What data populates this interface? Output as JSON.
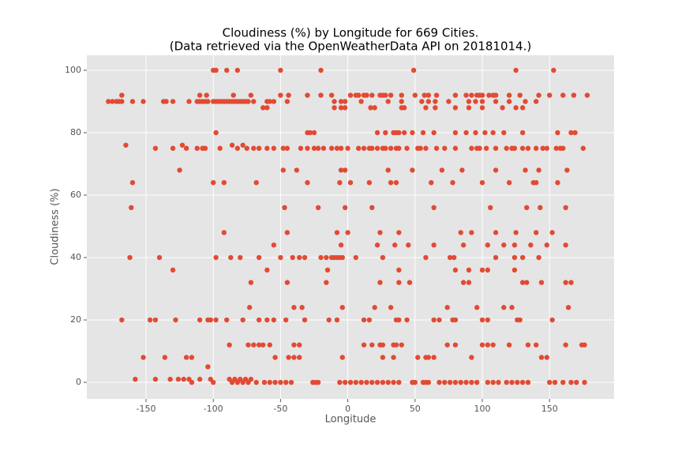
{
  "chart_data": {
    "type": "scatter",
    "title": "Cloudiness (%) by Longitude for 669 Cities.",
    "subtitle": "(Data retrieved via the OpenWeatherData API on 20181014.)",
    "x_label": "Longitude",
    "y_label": "Cloudiness (%)",
    "xlim": [
      -194,
      198
    ],
    "ylim": [
      -5.3,
      104.8
    ],
    "xticks": [
      -150,
      -100,
      -50,
      0,
      50,
      100,
      150
    ],
    "yticks": [
      0,
      20,
      40,
      60,
      80,
      100
    ],
    "grid": true,
    "color": "#e24a33",
    "x": [
      -178,
      -175,
      -172,
      -170,
      -168,
      -160,
      -152,
      -137,
      -135,
      -130,
      -118,
      -112,
      -110,
      -108,
      -106,
      -104,
      -100,
      -98,
      -96,
      -94,
      -92,
      -90,
      -88,
      -86,
      -84,
      -82,
      -80,
      -78,
      -76,
      -74,
      -70,
      -60,
      -58,
      -55,
      -45,
      -10,
      -5,
      -2,
      10,
      30,
      40,
      55,
      60,
      65,
      75,
      90,
      95,
      100,
      110,
      120,
      132,
      140,
      -168,
      -110,
      -105,
      -85,
      -72,
      -50,
      -44,
      -30,
      -20,
      -12,
      2,
      6,
      8,
      12,
      14,
      18,
      24,
      26,
      28,
      32,
      40,
      50,
      57,
      60,
      66,
      80,
      88,
      92,
      96,
      98,
      100,
      105,
      108,
      110,
      120,
      128,
      142,
      150,
      160,
      168,
      178,
      -100,
      -98,
      -90,
      -82,
      -50,
      -20,
      49,
      125,
      153,
      -63,
      -60,
      -10,
      -5,
      -2,
      17,
      20,
      40,
      42,
      58,
      65,
      80,
      90,
      100,
      115,
      125,
      130,
      -98,
      -30,
      -28,
      -25,
      22,
      28,
      34,
      36,
      38,
      42,
      48,
      56,
      64,
      80,
      88,
      95,
      102,
      108,
      116,
      130,
      156,
      166,
      169,
      -165,
      -143,
      -130,
      -123,
      -120,
      -112,
      -108,
      -106,
      -95,
      -86,
      -82,
      -78,
      -75,
      -70,
      -66,
      -60,
      -55,
      -48,
      -45,
      -35,
      -30,
      -25,
      -22,
      -18,
      -12,
      -8,
      -5,
      0,
      8,
      12,
      16,
      18,
      22,
      26,
      28,
      32,
      36,
      38,
      44,
      52,
      54,
      58,
      66,
      72,
      80,
      92,
      96,
      98,
      103,
      110,
      118,
      122,
      124,
      130,
      134,
      140,
      145,
      148,
      155,
      158,
      160,
      175,
      -125,
      -48,
      -38,
      -5,
      -2,
      30,
      48,
      70,
      85,
      110,
      132,
      142,
      163,
      -160,
      -100,
      -92,
      -68,
      -30,
      -6,
      2,
      16,
      32,
      36,
      62,
      78,
      100,
      120,
      138,
      140,
      156,
      -161,
      -47,
      -22,
      -2,
      18,
      64,
      106,
      133,
      143,
      162,
      -92,
      -45,
      -8,
      0,
      24,
      38,
      84,
      92,
      110,
      125,
      140,
      152,
      -55,
      -5,
      22,
      35,
      45,
      64,
      86,
      104,
      116,
      124,
      136,
      148,
      162,
      -162,
      -140,
      -98,
      -87,
      -80,
      -66,
      -50,
      -41,
      -36,
      -32,
      -20,
      -16,
      -12,
      -10,
      -8,
      -6,
      -4,
      6,
      26,
      58,
      76,
      79,
      110,
      124,
      130,
      142,
      -130,
      -60,
      -15,
      38,
      80,
      90,
      100,
      104,
      124,
      -72,
      -45,
      -16,
      24,
      38,
      46,
      86,
      90,
      130,
      133,
      144,
      162,
      166,
      -73,
      -40,
      -34,
      -4,
      20,
      32,
      74,
      96,
      116,
      122,
      164,
      -168,
      -147,
      -143,
      -128,
      -110,
      -104,
      -102,
      -98,
      -90,
      -78,
      -66,
      -60,
      -55,
      -46,
      -32,
      -14,
      -8,
      12,
      16,
      36,
      38,
      44,
      64,
      68,
      78,
      80,
      100,
      104,
      126,
      128,
      152,
      -88,
      -74,
      -70,
      -66,
      -63,
      -58,
      -40,
      -36,
      12,
      18,
      24,
      26,
      34,
      36,
      40,
      74,
      80,
      100,
      104,
      108,
      120,
      134,
      140,
      162,
      174,
      176,
      -152,
      -136,
      -120,
      -116,
      -54,
      -44,
      -40,
      -36,
      -4,
      26,
      34,
      52,
      58,
      60,
      64,
      92,
      144,
      148,
      -104,
      -158,
      -143,
      -132,
      -126,
      -122,
      -118,
      -110,
      -102,
      -88,
      -84,
      -80,
      -76,
      -72,
      -116,
      -100,
      -86,
      -82,
      -78,
      -74,
      -68,
      -62,
      -58,
      -54,
      -50,
      -46,
      -42,
      -26,
      -24,
      -22,
      -6,
      -2,
      2,
      6,
      10,
      14,
      18,
      22,
      26,
      30,
      34,
      38,
      48,
      50,
      56,
      58,
      60,
      68,
      72,
      76,
      80,
      84,
      88,
      92,
      96,
      104,
      108,
      112,
      118,
      122,
      126,
      130,
      134,
      150,
      154,
      160,
      166,
      170,
      176
    ],
    "values": [
      90,
      90,
      90,
      90,
      90,
      90,
      90,
      90,
      90,
      90,
      90,
      90,
      90,
      90,
      90,
      90,
      90,
      90,
      90,
      90,
      90,
      90,
      90,
      90,
      90,
      90,
      90,
      90,
      90,
      90,
      90,
      90,
      90,
      90,
      90,
      90,
      90,
      90,
      90,
      90,
      90,
      90,
      90,
      90,
      90,
      90,
      90,
      90,
      90,
      90,
      90,
      90,
      92,
      92,
      92,
      92,
      92,
      92,
      92,
      92,
      92,
      92,
      92,
      92,
      92,
      92,
      92,
      92,
      92,
      92,
      92,
      92,
      92,
      92,
      92,
      92,
      92,
      92,
      92,
      92,
      92,
      92,
      92,
      92,
      92,
      92,
      92,
      92,
      92,
      92,
      92,
      92,
      92,
      100,
      100,
      100,
      100,
      100,
      100,
      100,
      100,
      100,
      88,
      88,
      88,
      88,
      88,
      88,
      88,
      88,
      88,
      88,
      88,
      88,
      88,
      88,
      88,
      88,
      88,
      80,
      80,
      80,
      80,
      80,
      80,
      80,
      80,
      80,
      80,
      80,
      80,
      80,
      80,
      80,
      80,
      80,
      80,
      80,
      80,
      80,
      80,
      80,
      76,
      75,
      75,
      76,
      75,
      75,
      75,
      75,
      75,
      76,
      75,
      76,
      75,
      75,
      75,
      75,
      75,
      75,
      75,
      75,
      75,
      75,
      75,
      75,
      75,
      75,
      75,
      75,
      75,
      75,
      75,
      75,
      75,
      75,
      75,
      75,
      75,
      75,
      75,
      75,
      75,
      75,
      75,
      75,
      75,
      75,
      75,
      75,
      75,
      75,
      75,
      75,
      75,
      75,
      75,
      75,
      75,
      75,
      75,
      75,
      75,
      75,
      68,
      68,
      68,
      68,
      68,
      68,
      68,
      68,
      68,
      68,
      68,
      68,
      68,
      64,
      64,
      64,
      64,
      64,
      64,
      64,
      64,
      64,
      64,
      64,
      64,
      64,
      64,
      64,
      64,
      64,
      56,
      56,
      56,
      56,
      56,
      56,
      56,
      56,
      56,
      56,
      48,
      48,
      48,
      48,
      48,
      48,
      48,
      48,
      48,
      48,
      48,
      48,
      44,
      44,
      44,
      44,
      44,
      44,
      44,
      44,
      44,
      44,
      44,
      44,
      44,
      40,
      40,
      40,
      40,
      40,
      40,
      40,
      40,
      40,
      40,
      40,
      40,
      40,
      40,
      40,
      40,
      40,
      40,
      40,
      40,
      40,
      40,
      40,
      40,
      40,
      40,
      36,
      36,
      36,
      36,
      36,
      36,
      36,
      36,
      36,
      32,
      32,
      32,
      32,
      32,
      32,
      32,
      32,
      32,
      32,
      32,
      32,
      32,
      24,
      24,
      24,
      24,
      24,
      24,
      24,
      24,
      24,
      24,
      24,
      20,
      20,
      20,
      20,
      20,
      20,
      20,
      20,
      20,
      20,
      20,
      20,
      20,
      20,
      20,
      20,
      20,
      20,
      20,
      20,
      20,
      20,
      20,
      20,
      20,
      20,
      20,
      20,
      20,
      20,
      20,
      12,
      12,
      12,
      12,
      12,
      12,
      12,
      12,
      12,
      12,
      12,
      12,
      12,
      12,
      12,
      12,
      12,
      12,
      12,
      12,
      12,
      12,
      12,
      12,
      12,
      12,
      8,
      8,
      8,
      8,
      8,
      8,
      8,
      8,
      8,
      8,
      8,
      8,
      8,
      8,
      8,
      8,
      8,
      8,
      5,
      1,
      1,
      1,
      1,
      1,
      1,
      1,
      1,
      1,
      1,
      1,
      1,
      1,
      0,
      0,
      0,
      0,
      0,
      0,
      0,
      0,
      0,
      0,
      0,
      0,
      0,
      0,
      0,
      0,
      0,
      0,
      0,
      0,
      0,
      0,
      0,
      0,
      0,
      0,
      0,
      0,
      0,
      0,
      0,
      0,
      0,
      0,
      0,
      0,
      0,
      0,
      0,
      0,
      0,
      0,
      0,
      0,
      0,
      0,
      0,
      0,
      0,
      0,
      0,
      0,
      0,
      0,
      0
    ]
  }
}
